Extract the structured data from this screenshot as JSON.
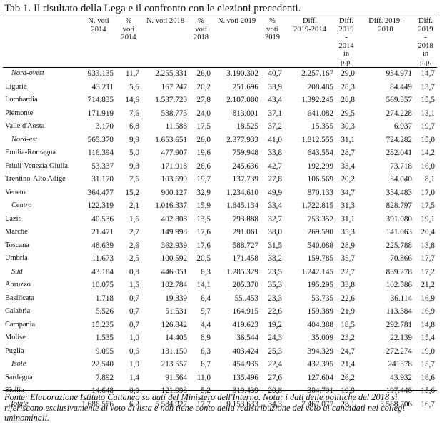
{
  "title": "Tab 1. Il risultato della Lega e il confronto con le elezioni precedenti.",
  "headers": [
    "",
    "N. voti\n2014",
    "%\nvoti\n2014",
    "N. voti 2018",
    "%\nvoti\n2018",
    "N. voti 2019",
    "%\nvoti\n2019",
    "Diff.\n2019-2014",
    "Diff.\n2019\n-\n2014\nin\np.p.",
    "Diff. 2019-\n2018",
    "Diff.\n2019\n-\n2018\nin\np.p."
  ],
  "rows": [
    {
      "type": "macro",
      "cells": [
        "Nord-ovest",
        "933.135",
        "11,7",
        "2.255.331",
        "26,0",
        "3.190.302",
        "40,7",
        "2.257.167",
        "29,0",
        "934.971",
        "14,7"
      ]
    },
    {
      "type": "region",
      "cells": [
        "Liguria",
        "43.211",
        "5,6",
        "167.247",
        "20,2",
        "251.696",
        "33,9",
        "208.485",
        "28,3",
        "84.449",
        "13,7"
      ]
    },
    {
      "type": "region",
      "cells": [
        "Lombardia",
        "714.835",
        "14,6",
        "1.537.723",
        "27,8",
        "2.107.080",
        "43,4",
        "1.392.245",
        "28,8",
        "569.357",
        "15,5"
      ]
    },
    {
      "type": "region",
      "cells": [
        "Piemonte",
        "171.919",
        "7,6",
        "538.773",
        "24,0",
        "813.001",
        "37,1",
        "641.082",
        "29,5",
        "274.228",
        "13,1"
      ]
    },
    {
      "type": "region",
      "cells": [
        "Valle d'Aosta",
        "3.170",
        "6,8",
        "11.588",
        "17,5",
        "18.525",
        "37,2",
        "15.355",
        "30,3",
        "6.937",
        "19,7"
      ]
    },
    {
      "type": "macro",
      "cells": [
        "Nord-est",
        "565.378",
        "9,9",
        "1.653.651",
        "26,0",
        "2.377.933",
        "41,0",
        "1.812.555",
        "31,1",
        "724.282",
        "15,0"
      ]
    },
    {
      "type": "region",
      "cells": [
        "Emilia-Romagna",
        "116.394",
        "5,0",
        "477.907",
        "19,6",
        "759.948",
        "33,8",
        "643.554",
        "28,7",
        "282.041",
        "14,2"
      ]
    },
    {
      "type": "region",
      "cells": [
        "Friuli-Venezia Giulia",
        "53.337",
        "9,3",
        "171.918",
        "26,6",
        "245.636",
        "42,7",
        "192.299",
        "33,4",
        "73.718",
        "16,0"
      ]
    },
    {
      "type": "region",
      "cells": [
        "Trentino-Alto Adige",
        "31.170",
        "7,6",
        "103.699",
        "19,7",
        "137.739",
        "27,8",
        "106.569",
        "20,2",
        "34.040",
        "8,1"
      ]
    },
    {
      "type": "region",
      "cells": [
        "Veneto",
        "364.477",
        "15,2",
        "900.127",
        "32,9",
        "1.234.610",
        "49,9",
        "870.133",
        "34,7",
        "334.483",
        "17,0"
      ]
    },
    {
      "type": "macro",
      "cells": [
        "Centro",
        "122.319",
        "2,1",
        "1.016.337",
        "15,9",
        "1.845.134",
        "33,4",
        "1.722.815",
        "31,3",
        "828.797",
        "17,5"
      ]
    },
    {
      "type": "region",
      "cells": [
        "Lazio",
        "40.536",
        "1,6",
        "402.808",
        "13,5",
        "793.888",
        "32,7",
        "753.352",
        "31,1",
        "391.080",
        "19,1"
      ]
    },
    {
      "type": "region",
      "cells": [
        "Marche",
        "21.471",
        "2,7",
        "149.998",
        "17,6",
        "291.061",
        "38,0",
        "269.590",
        "35,3",
        "141.063",
        "20,4"
      ]
    },
    {
      "type": "region",
      "cells": [
        "Toscana",
        "48.639",
        "2,6",
        "362.939",
        "17,6",
        "588.727",
        "31,5",
        "540.088",
        "28,9",
        "225.788",
        "13,8"
      ]
    },
    {
      "type": "region",
      "cells": [
        "Umbria",
        "11.673",
        "2,5",
        "100.592",
        "20,5",
        "171.458",
        "38,2",
        "159.785",
        "35,7",
        "70.866",
        "17,7"
      ]
    },
    {
      "type": "macro",
      "cells": [
        "Sud",
        "43.184",
        "0,8",
        "446.051",
        "6,3",
        "1.285.329",
        "23,5",
        "1.242.145",
        "22,7",
        "839.278",
        "17,2"
      ]
    },
    {
      "type": "region",
      "cells": [
        "Abruzzo",
        "10.075",
        "1,5",
        "102.784",
        "14,1",
        "205.370",
        "35,3",
        "195.295",
        "33,8",
        "102.586",
        "21,2"
      ]
    },
    {
      "type": "region",
      "cells": [
        "Basilicata",
        "1.718",
        "0,7",
        "19.339",
        "6,4",
        "55..453",
        "23,3",
        "53.735",
        "22,6",
        "36.114",
        "16,9"
      ]
    },
    {
      "type": "region",
      "cells": [
        "Calabria",
        "5.526",
        "0,7",
        "51.531",
        "5,7",
        "164.915",
        "22,6",
        "159.389",
        "21,9",
        "113.384",
        "16,9"
      ]
    },
    {
      "type": "region",
      "cells": [
        "Campania",
        "15.235",
        "0,7",
        "126.842",
        "4,4",
        "419.623",
        "19,2",
        "404.388",
        "18,5",
        "292.781",
        "14,8"
      ]
    },
    {
      "type": "region",
      "cells": [
        "Molise",
        "1.535",
        "1,0",
        "14.405",
        "8,9",
        "36.544",
        "24,3",
        "35.009",
        "23,2",
        "22.139",
        "15,4"
      ]
    },
    {
      "type": "region",
      "cells": [
        "Puglia",
        "9.095",
        "0,6",
        "131.150",
        "6,3",
        "403.424",
        "25,3",
        "394.329",
        "24,7",
        "272.274",
        "19,0"
      ]
    },
    {
      "type": "macro",
      "cells": [
        "Isole",
        "22.540",
        "1,0",
        "213.557",
        "6,7",
        "454.935",
        "22,4",
        "432.395",
        "21,4",
        "241378",
        "15,7"
      ]
    },
    {
      "type": "region",
      "cells": [
        "Sardegna",
        "7.892",
        "1,4",
        "91.564",
        "11,0",
        "135.496",
        "27,6",
        "127.604",
        "26,2",
        "43.932",
        "16,6"
      ]
    },
    {
      "type": "region",
      "cells": [
        "Sicilia",
        "14.648",
        "0,9",
        "121.993",
        "5,2",
        "319.439",
        "20,8",
        "304.791",
        "19,9",
        "197.446",
        "15,6"
      ]
    },
    {
      "type": "total",
      "cells": [
        "Totale",
        "1.686.556",
        "6,2",
        "5.584.927",
        "17,7",
        "9.153.633",
        "34,3",
        "7.467.077",
        "28,1",
        "3.568.706",
        "16,7"
      ]
    }
  ],
  "note": "Fonte: Elaborazione Istituto Cattaneo su dati del Ministero dell'Interno. Nota: i dati delle politiche del 2018 si riferiscono esclusivamente al voto di lista e non tiene conto della redistribuzione del voto ai candidati nei collegi uninominali."
}
